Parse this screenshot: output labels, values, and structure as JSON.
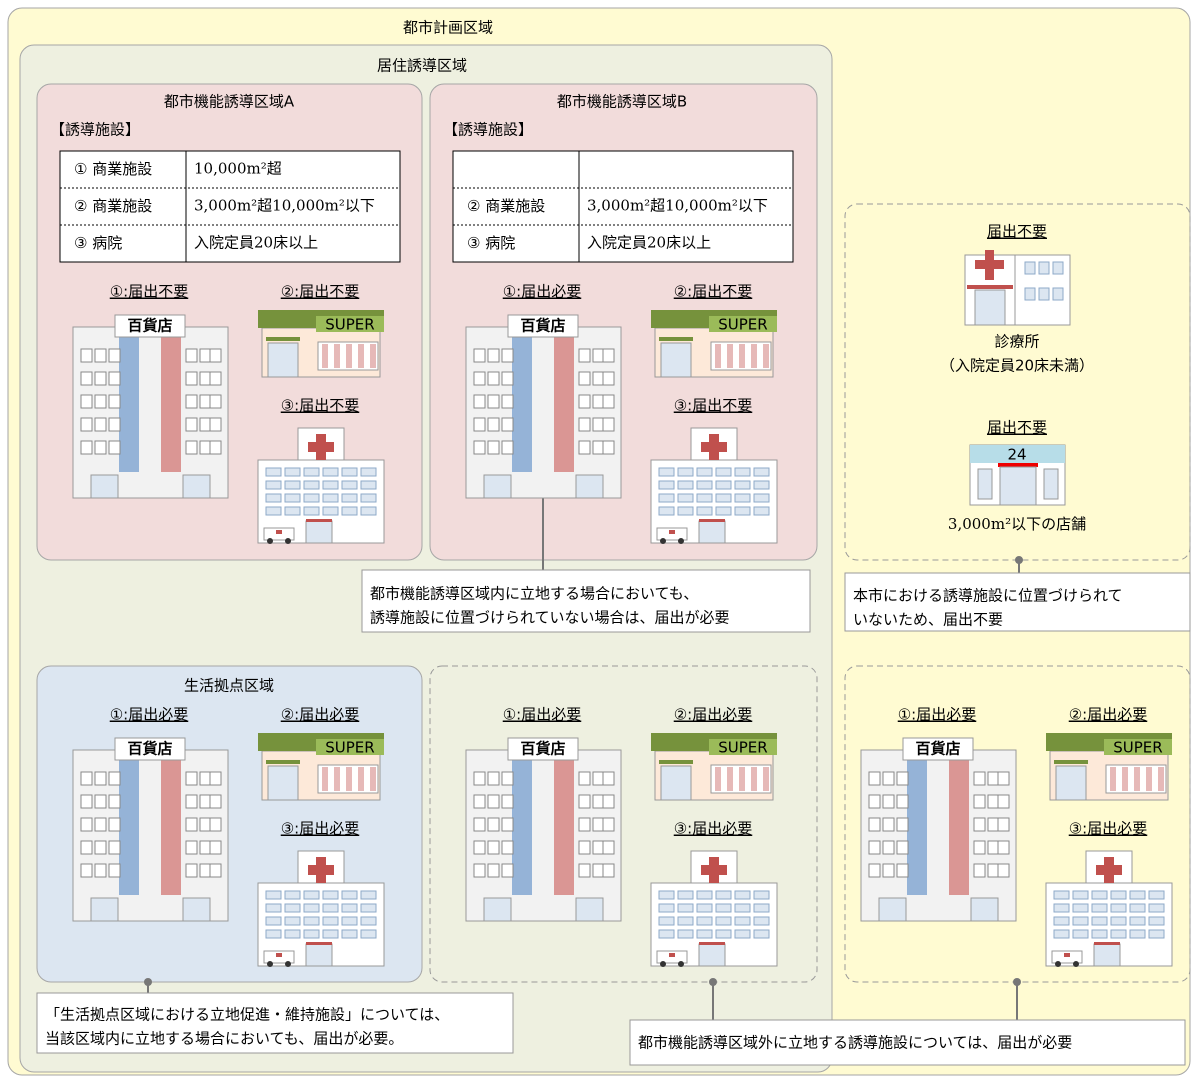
{
  "city_planning_area": {
    "title": "都市計画区域"
  },
  "residential_area": {
    "title": "居住誘導区域"
  },
  "zone_a": {
    "title": "都市機能誘導区域A",
    "heading": "【誘導施設】",
    "table": {
      "rows": [
        [
          "① 商業施設",
          "10,000m²超"
        ],
        [
          "② 商業施設",
          "3,000m²超10,000m²以下"
        ],
        [
          "③ 病院",
          "入院定員20床以上"
        ]
      ]
    },
    "labels": [
      "①:届出不要",
      "②:届出不要",
      "③:届出不要"
    ]
  },
  "zone_b": {
    "title": "都市機能誘導区域B",
    "heading": "【誘導施設】",
    "table": {
      "rows": [
        [
          "② 商業施設",
          "3,000m²超10,000m²以下"
        ],
        [
          "③ 病院",
          "入院定員20床以上"
        ]
      ]
    },
    "labels": [
      "①:届出必要",
      "②:届出不要",
      "③:届出不要"
    ]
  },
  "note_b": {
    "lines": [
      "都市機能誘導区域内に立地する場合においても、",
      "誘導施設に位置づけられていない場合は、届出が必要"
    ]
  },
  "outside_facilities": {
    "clinic": {
      "status": "届出不要",
      "name": "診療所",
      "note": "（入院定員20床未満）"
    },
    "store": {
      "status": "届出不要",
      "name": "3,000m²以下の店舗"
    }
  },
  "note_outside": {
    "lines": [
      "本市における誘導施設に位置づけられて",
      "いないため、届出不要"
    ]
  },
  "life_zone": {
    "title": "生活拠点区域",
    "labels": [
      "①:届出必要",
      "②:届出必要",
      "③:届出必要"
    ]
  },
  "residential_outside_zone": {
    "labels": [
      "①:届出必要",
      "②:届出必要",
      "③:届出必要"
    ]
  },
  "non_residential_area": {
    "labels": [
      "①:届出必要",
      "②:届出必要",
      "③:届出必要"
    ]
  },
  "note_life": {
    "lines": [
      "「生活拠点区域における立地促進・維持施設」については、",
      "当該区域内に立地する場合においても、届出が必要。"
    ]
  },
  "note_outside_zone": {
    "text": "都市機能誘導区域外に立地する誘導施設については、届出が必要"
  },
  "icon_labels": {
    "department_store": "百貨店",
    "supermarket": "SUPER",
    "convenience_store": "24"
  }
}
